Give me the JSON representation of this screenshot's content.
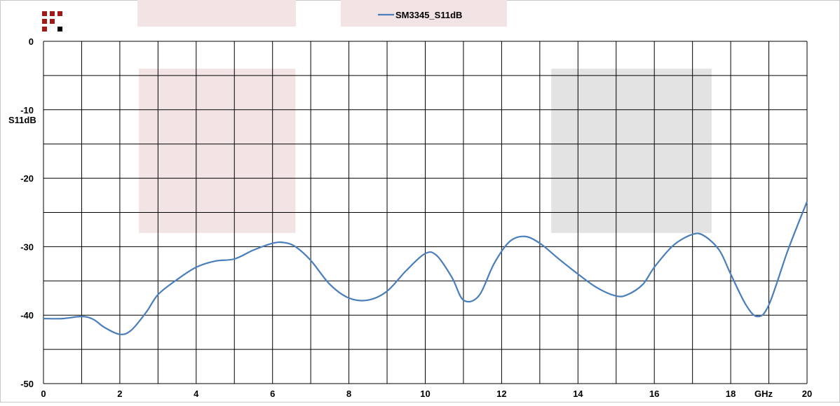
{
  "colors": {
    "series_line": "#4a7ebb",
    "grid": "#000000",
    "band_pink": "#f2e4e4",
    "band_gray": "#e3e3e3",
    "logo_red": "#a01818",
    "logo_black": "#000000"
  },
  "logo": {
    "icon": "grid-logo-icon"
  },
  "chart_data": {
    "type": "line",
    "title": "",
    "xlabel": "GHz",
    "ylabel": "S11dB",
    "xlim": [
      0,
      20
    ],
    "ylim": [
      -50,
      0
    ],
    "x_ticks": [
      0,
      2,
      4,
      6,
      8,
      10,
      12,
      14,
      16,
      18,
      20
    ],
    "x_tick_labels": [
      "0",
      "2",
      "4",
      "6",
      "8",
      "10",
      "12",
      "14",
      "16",
      "18",
      "20"
    ],
    "y_ticks": [
      0,
      -10,
      -20,
      -30,
      -40,
      -50
    ],
    "y_tick_labels": [
      "0",
      "-10",
      "-20",
      "-30",
      "-40",
      "-50"
    ],
    "x_minor_step": 1,
    "y_minor_step": 5,
    "grid": true,
    "legend_position": "top-center",
    "series": [
      {
        "name": "SM3345_S11dB",
        "x": [
          0,
          0.5,
          1.0,
          1.3,
          1.6,
          2.0,
          2.3,
          2.7,
          3.0,
          3.5,
          4.0,
          4.5,
          5.0,
          5.5,
          6.0,
          6.3,
          6.6,
          7.0,
          7.5,
          8.0,
          8.5,
          9.0,
          9.5,
          10.0,
          10.3,
          10.7,
          11.0,
          11.4,
          11.8,
          12.2,
          12.6,
          13.0,
          13.5,
          14.0,
          14.5,
          15.0,
          15.3,
          15.7,
          16.0,
          16.5,
          17.0,
          17.3,
          17.7,
          18.0,
          18.4,
          18.7,
          19.0,
          19.5,
          20.0
        ],
        "y": [
          -40.5,
          -40.5,
          -40.2,
          -40.6,
          -41.8,
          -42.8,
          -42.2,
          -39.5,
          -37.0,
          -34.8,
          -33.0,
          -32.1,
          -31.8,
          -30.5,
          -29.5,
          -29.4,
          -30.0,
          -32.0,
          -35.5,
          -37.5,
          -37.8,
          -36.5,
          -33.5,
          -31.0,
          -31.3,
          -34.5,
          -37.8,
          -37.2,
          -32.5,
          -29.3,
          -28.5,
          -29.5,
          -31.8,
          -34.0,
          -36.0,
          -37.2,
          -37.0,
          -35.5,
          -33.0,
          -29.8,
          -28.2,
          -28.4,
          -30.5,
          -34.0,
          -38.5,
          -40.2,
          -38.5,
          -30.5,
          -23.4
        ]
      }
    ],
    "bands": [
      {
        "x_range": [
          2.5,
          6.6
        ],
        "y_range": [
          -28,
          -4
        ],
        "color": "band_pink"
      },
      {
        "x_range": [
          13.3,
          17.5
        ],
        "y_range": [
          -28,
          -4
        ],
        "color": "band_gray"
      }
    ]
  }
}
